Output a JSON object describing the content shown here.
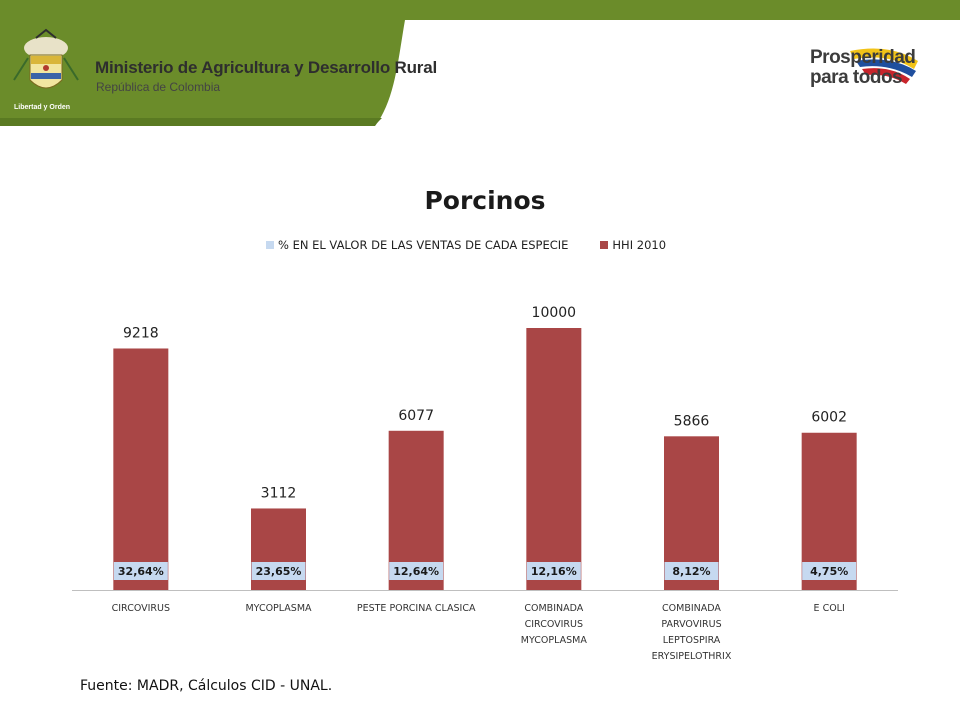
{
  "header": {
    "ministry_name": "Ministerio de Agricultura y Desarrollo Rural",
    "ministry_sub": "República de Colombia",
    "crest_caption": "Libertad y Orden",
    "brand_line1": "Prosperidad",
    "brand_line2": "para todos",
    "colors": {
      "band": "#6b8c2a",
      "band_dark": "#5a7a22"
    }
  },
  "source_note": "Fuente: MADR, Cálculos CID - UNAL.",
  "chart_data": {
    "type": "bar",
    "title": "Porcinos",
    "categories": [
      [
        "CIRCOVIRUS"
      ],
      [
        "MYCOPLASMA"
      ],
      [
        "PESTE PORCINA CLASICA"
      ],
      [
        "COMBINADA",
        "CIRCOVIRUS",
        "MYCOPLASMA"
      ],
      [
        "COMBINADA",
        "PARVOVIRUS",
        "LEPTOSPIRA",
        "ERYSIPELOTHRIX"
      ],
      [
        "E COLI"
      ]
    ],
    "ylim": [
      0,
      10000
    ],
    "legend_position": "top",
    "grid": false,
    "series": [
      {
        "name": "% EN EL VALOR DE LAS VENTAS DE CADA ESPECIE",
        "color": "#c6d9f0",
        "values": [
          32.64,
          23.65,
          12.64,
          12.16,
          8.12,
          4.75
        ],
        "labels": [
          "32,64%",
          "23,65%",
          "12,64%",
          "12,16%",
          "8,12%",
          "4,75%"
        ]
      },
      {
        "name": "HHI 2010",
        "color": "#a94646",
        "values": [
          9218,
          3112,
          6077,
          10000,
          5866,
          6002
        ],
        "labels": [
          "9218",
          "3112",
          "6077",
          "10000",
          "5866",
          "6002"
        ]
      }
    ]
  }
}
